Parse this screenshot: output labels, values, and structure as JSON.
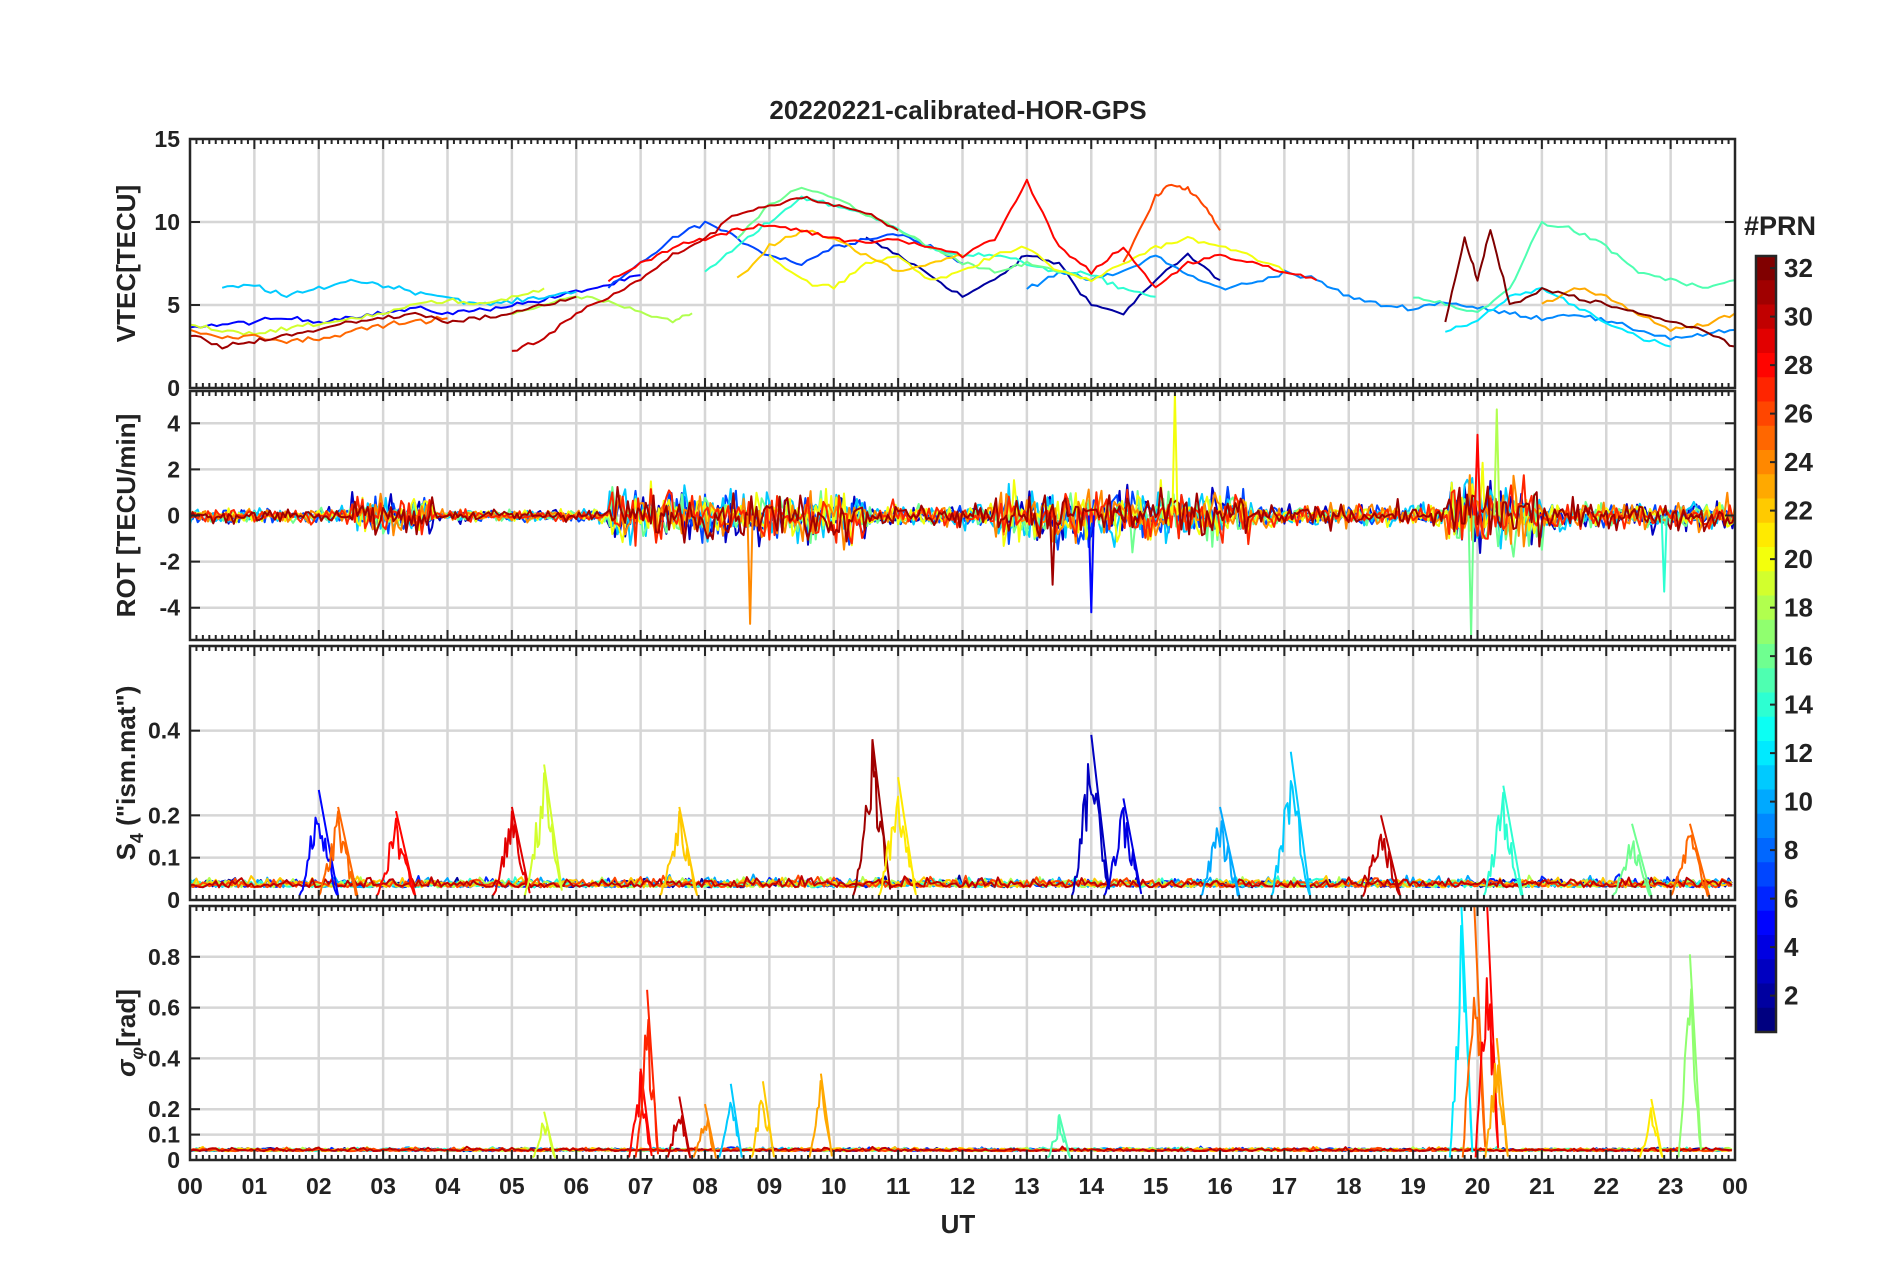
{
  "chart_data": [
    {
      "type": "line",
      "panel": "VTEC",
      "title": "20220221-calibrated-HOR-GPS",
      "ylabel": "VTEC[TECU]",
      "xlabel": "",
      "xlim": [
        0,
        24
      ],
      "ylim": [
        0,
        15
      ],
      "yticks": [
        0,
        5,
        10,
        15
      ],
      "xticks": [
        0,
        1,
        2,
        3,
        4,
        5,
        6,
        7,
        8,
        9,
        10,
        11,
        12,
        13,
        14,
        15,
        16,
        17,
        18,
        19,
        20,
        21,
        22,
        23,
        24
      ],
      "series": [
        {
          "prn": 2,
          "x": [
            10.5,
            11.0,
            11.5,
            12.0,
            12.5,
            13.0,
            13.5,
            14.0,
            14.5,
            15.0,
            15.5,
            16.0
          ],
          "y": [
            9.0,
            8.0,
            6.8,
            5.5,
            6.5,
            8.0,
            7.5,
            5.0,
            4.5,
            6.5,
            8.0,
            6.5
          ]
        },
        {
          "prn": 5,
          "x": [
            0.0,
            0.5,
            1.0,
            1.5,
            2.0,
            2.5,
            3.0,
            3.5,
            4.0,
            4.5,
            5.0,
            5.5,
            6.0,
            6.5,
            7.0
          ],
          "y": [
            3.7,
            3.8,
            4.0,
            4.2,
            4.0,
            4.3,
            4.5,
            4.8,
            4.5,
            4.7,
            5.0,
            5.3,
            5.8,
            6.2,
            6.8
          ]
        },
        {
          "prn": 7,
          "x": [
            6.5,
            7.0,
            7.5,
            8.0,
            8.5,
            9.0,
            9.5,
            10.0,
            10.5,
            11.0,
            11.5,
            12.0
          ],
          "y": [
            6.0,
            7.5,
            9.0,
            10.0,
            9.0,
            8.0,
            7.5,
            8.5,
            9.0,
            9.3,
            8.5,
            7.5
          ]
        },
        {
          "prn": 9,
          "x": [
            13.0,
            13.5,
            14.0,
            14.5,
            15.0,
            15.5,
            16.0,
            16.5,
            17.0,
            17.5,
            18.0,
            18.5,
            19.0,
            19.5,
            20.0,
            20.5,
            21.0,
            21.5,
            22.0,
            22.5,
            23.0,
            23.5,
            24.0
          ],
          "y": [
            6.0,
            7.0,
            6.5,
            7.0,
            8.0,
            6.8,
            6.0,
            6.3,
            7.0,
            6.5,
            5.5,
            5.0,
            4.8,
            5.2,
            4.8,
            4.5,
            4.2,
            4.5,
            4.0,
            3.5,
            3.0,
            3.2,
            3.5
          ]
        },
        {
          "prn": 11,
          "x": [
            0.5,
            1.0,
            1.5,
            2.0,
            2.5,
            3.0,
            3.5,
            4.0,
            4.5,
            5.0,
            5.5,
            6.0
          ],
          "y": [
            6.0,
            6.2,
            5.5,
            6.0,
            6.5,
            6.2,
            5.8,
            5.5,
            5.0,
            5.2,
            5.5,
            5.8
          ]
        },
        {
          "prn": 12,
          "x": [
            19.5,
            20.0,
            20.5,
            21.0,
            21.5,
            22.0,
            22.5,
            23.0
          ],
          "y": [
            3.5,
            4.0,
            5.5,
            6.0,
            5.0,
            4.0,
            3.0,
            2.5
          ]
        },
        {
          "prn": 14,
          "x": [
            8.0,
            8.5,
            9.0,
            9.5,
            10.0,
            10.5,
            11.0,
            11.5,
            12.0,
            12.5,
            13.0,
            13.5,
            14.0,
            14.5,
            15.0
          ],
          "y": [
            7.0,
            8.5,
            10.0,
            11.5,
            11.0,
            10.5,
            9.5,
            8.5,
            8.0,
            8.0,
            7.5,
            7.0,
            6.8,
            6.0,
            5.5
          ]
        },
        {
          "prn": 15,
          "x": [
            19.0,
            19.5,
            20.0,
            20.5,
            21.0,
            21.5,
            22.0,
            22.5,
            23.0,
            23.5,
            24.0
          ],
          "y": [
            5.5,
            5.0,
            4.5,
            6.0,
            10.0,
            9.5,
            8.5,
            7.0,
            6.5,
            6.0,
            6.5
          ]
        },
        {
          "prn": 16,
          "x": [
            8.5,
            9.0,
            9.5,
            10.0,
            10.5,
            11.0,
            11.5,
            12.0,
            12.5,
            13.0,
            13.5,
            14.0
          ],
          "y": [
            9.0,
            11.0,
            12.0,
            11.5,
            10.5,
            9.5,
            8.5,
            7.5,
            7.0,
            7.5,
            7.0,
            6.5
          ]
        },
        {
          "prn": 18,
          "x": [
            5.0,
            5.5,
            6.0,
            6.5,
            7.0,
            7.5,
            7.8
          ],
          "y": [
            4.5,
            5.0,
            5.5,
            5.2,
            4.5,
            4.0,
            4.5
          ]
        },
        {
          "prn": 19,
          "x": [
            0.0,
            0.5,
            1.0,
            1.5,
            2.0,
            2.5,
            3.0,
            3.5,
            4.0,
            4.5,
            5.0,
            5.5
          ],
          "y": [
            3.8,
            3.5,
            3.3,
            3.6,
            3.8,
            4.2,
            4.5,
            5.0,
            5.3,
            5.0,
            5.5,
            6.0
          ]
        },
        {
          "prn": 20,
          "x": [
            9.0,
            9.5,
            10.0,
            10.5,
            11.0,
            11.5,
            12.0,
            12.5,
            13.0,
            13.5,
            14.0,
            14.5,
            15.0,
            15.5,
            16.0,
            16.5,
            17.0
          ],
          "y": [
            8.0,
            6.5,
            6.0,
            7.5,
            8.0,
            6.5,
            7.0,
            8.0,
            8.5,
            7.0,
            6.5,
            7.5,
            8.5,
            9.0,
            8.5,
            8.0,
            7.0
          ]
        },
        {
          "prn": 22,
          "x": [
            8.5,
            9.0,
            9.5,
            10.0,
            10.5,
            11.0,
            11.5,
            12.0
          ],
          "y": [
            6.5,
            8.5,
            9.5,
            9.0,
            8.0,
            7.0,
            7.5,
            8.0
          ]
        },
        {
          "prn": 23,
          "x": [
            21.0,
            21.5,
            22.0,
            22.5,
            23.0,
            23.5,
            24.0
          ],
          "y": [
            5.0,
            6.0,
            5.5,
            4.5,
            3.5,
            3.8,
            4.5
          ]
        },
        {
          "prn": 25,
          "x": [
            0.0,
            0.5,
            1.0,
            1.5,
            2.0,
            2.5,
            3.0,
            3.5,
            4.0
          ],
          "y": [
            3.5,
            3.0,
            3.2,
            2.8,
            3.0,
            3.4,
            3.8,
            4.0,
            4.2
          ]
        },
        {
          "prn": 26,
          "x": [
            14.5,
            15.0,
            15.25,
            15.5,
            15.75,
            16.0
          ],
          "y": [
            7.5,
            11.5,
            12.3,
            12.0,
            11.0,
            9.5
          ]
        },
        {
          "prn": 28,
          "x": [
            6.5,
            7.0,
            7.5,
            8.0,
            8.5,
            9.0,
            9.5,
            10.0,
            10.5,
            11.0,
            11.5,
            12.0,
            12.5,
            13.0,
            13.5,
            14.0,
            14.5,
            15.0,
            15.5,
            16.0,
            16.5,
            17.0,
            17.5
          ],
          "y": [
            6.5,
            7.5,
            8.5,
            9.0,
            9.5,
            9.8,
            9.5,
            9.0,
            8.8,
            9.0,
            8.5,
            8.0,
            9.0,
            12.5,
            8.5,
            7.0,
            8.5,
            6.0,
            7.5,
            8.0,
            7.5,
            7.0,
            6.5
          ]
        },
        {
          "prn": 30,
          "x": [
            5.0,
            5.5,
            6.0,
            6.5,
            7.0,
            7.5,
            8.0,
            8.5,
            9.0,
            9.5,
            10.0,
            10.5,
            11.0
          ],
          "y": [
            2.2,
            3.0,
            4.5,
            5.5,
            6.5,
            8.0,
            9.0,
            10.5,
            11.0,
            11.5,
            11.0,
            10.5,
            9.5
          ]
        },
        {
          "prn": 31,
          "x": [
            0.0,
            0.5,
            1.0,
            1.5,
            2.0,
            2.5,
            3.0,
            3.5,
            4.0,
            4.5,
            5.0,
            5.5,
            6.0
          ],
          "y": [
            3.2,
            2.5,
            2.8,
            3.2,
            3.5,
            4.0,
            4.2,
            4.5,
            4.0,
            4.2,
            4.5,
            5.0,
            5.5
          ]
        },
        {
          "prn": 32,
          "x": [
            19.5,
            19.8,
            20.0,
            20.2,
            20.5,
            21.0,
            21.5,
            22.0,
            22.5,
            23.0,
            23.5,
            24.0
          ],
          "y": [
            4.0,
            9.0,
            6.5,
            9.5,
            5.0,
            6.0,
            5.5,
            5.0,
            4.5,
            4.0,
            3.5,
            2.5
          ]
        }
      ]
    },
    {
      "type": "line",
      "panel": "ROT",
      "ylabel": "ROT [TECU/min]",
      "xlim": [
        0,
        24
      ],
      "ylim": [
        -5.4,
        5.4
      ],
      "yticks": [
        -4,
        -2,
        0,
        2,
        4
      ],
      "activity": [
        {
          "from": 0.0,
          "to": 2.5,
          "amp": 0.6
        },
        {
          "from": 2.5,
          "to": 3.8,
          "amp": 1.6
        },
        {
          "from": 3.8,
          "to": 6.5,
          "amp": 0.5
        },
        {
          "from": 6.5,
          "to": 10.5,
          "amp": 1.9
        },
        {
          "from": 10.5,
          "to": 12.5,
          "amp": 0.9
        },
        {
          "from": 12.5,
          "to": 16.5,
          "amp": 2.1
        },
        {
          "from": 16.5,
          "to": 19.5,
          "amp": 0.8
        },
        {
          "from": 19.5,
          "to": 21.0,
          "amp": 2.8
        },
        {
          "from": 21.0,
          "to": 24.0,
          "amp": 1.1
        }
      ],
      "peaks": [
        {
          "x": 8.7,
          "y": -4.7,
          "prn": 24
        },
        {
          "x": 14.0,
          "y": -4.2,
          "prn": 5
        },
        {
          "x": 15.3,
          "y": 5.3,
          "prn": 20
        },
        {
          "x": 19.9,
          "y": -5.2,
          "prn": 16
        },
        {
          "x": 20.3,
          "y": 4.6,
          "prn": 18
        },
        {
          "x": 20.0,
          "y": 3.5,
          "prn": 28
        },
        {
          "x": 13.4,
          "y": -3.0,
          "prn": 31
        },
        {
          "x": 22.9,
          "y": -3.3,
          "prn": 14
        }
      ]
    },
    {
      "type": "line",
      "panel": "S4",
      "ylabel": "S4 (\"ism.mat\")",
      "ylabel_main": "S",
      "ylabel_sub": "4",
      "ylabel_rest": " (\"ism.mat\")",
      "xlim": [
        0,
        24
      ],
      "ylim": [
        0,
        0.6
      ],
      "yticks": [
        0,
        0.1,
        0.2,
        0.4
      ],
      "ytick_labels": [
        "0",
        "0.1",
        "0.2",
        "0.4"
      ],
      "peaks": [
        {
          "x": 2.0,
          "y": 0.26,
          "prn": 5
        },
        {
          "x": 2.3,
          "y": 0.22,
          "prn": 25
        },
        {
          "x": 3.2,
          "y": 0.21,
          "prn": 28
        },
        {
          "x": 5.0,
          "y": 0.22,
          "prn": 29
        },
        {
          "x": 5.5,
          "y": 0.32,
          "prn": 19
        },
        {
          "x": 7.6,
          "y": 0.22,
          "prn": 22
        },
        {
          "x": 10.6,
          "y": 0.38,
          "prn": 31
        },
        {
          "x": 11.0,
          "y": 0.29,
          "prn": 21
        },
        {
          "x": 14.0,
          "y": 0.39,
          "prn": 3
        },
        {
          "x": 14.5,
          "y": 0.24,
          "prn": 4
        },
        {
          "x": 16.0,
          "y": 0.22,
          "prn": 10
        },
        {
          "x": 17.1,
          "y": 0.35,
          "prn": 11
        },
        {
          "x": 18.5,
          "y": 0.2,
          "prn": 30
        },
        {
          "x": 20.4,
          "y": 0.27,
          "prn": 14
        },
        {
          "x": 22.4,
          "y": 0.18,
          "prn": 16
        },
        {
          "x": 23.3,
          "y": 0.18,
          "prn": 25
        }
      ]
    },
    {
      "type": "line",
      "panel": "sigma_phi",
      "ylabel": "σφ[rad]",
      "ylabel_main": "σ",
      "ylabel_sub": "φ",
      "ylabel_rest": "[rad]",
      "xlabel": "UT",
      "xlim": [
        0,
        24
      ],
      "ylim": [
        0,
        1.0
      ],
      "yticks": [
        0,
        0.1,
        0.2,
        0.4,
        0.6,
        0.8
      ],
      "ytick_labels": [
        "0",
        "0.1",
        "0.2",
        "0.4",
        "0.6",
        "0.8"
      ],
      "xtick_labels": [
        "00",
        "01",
        "02",
        "03",
        "04",
        "05",
        "06",
        "07",
        "08",
        "09",
        "10",
        "11",
        "12",
        "13",
        "14",
        "15",
        "16",
        "17",
        "18",
        "19",
        "20",
        "21",
        "22",
        "23",
        "00"
      ],
      "peaks": [
        {
          "x": 7.0,
          "y": 0.36,
          "prn": 28
        },
        {
          "x": 7.1,
          "y": 0.67,
          "prn": 27
        },
        {
          "x": 7.6,
          "y": 0.25,
          "prn": 30
        },
        {
          "x": 8.0,
          "y": 0.22,
          "prn": 24
        },
        {
          "x": 8.4,
          "y": 0.3,
          "prn": 11
        },
        {
          "x": 8.9,
          "y": 0.31,
          "prn": 22
        },
        {
          "x": 9.8,
          "y": 0.34,
          "prn": 23
        },
        {
          "x": 5.5,
          "y": 0.19,
          "prn": 19
        },
        {
          "x": 13.5,
          "y": 0.18,
          "prn": 15
        },
        {
          "x": 19.75,
          "y": 1.0,
          "prn": 12
        },
        {
          "x": 19.95,
          "y": 1.0,
          "prn": 25
        },
        {
          "x": 20.15,
          "y": 1.0,
          "prn": 28
        },
        {
          "x": 20.3,
          "y": 0.48,
          "prn": 23
        },
        {
          "x": 22.7,
          "y": 0.24,
          "prn": 21
        },
        {
          "x": 23.3,
          "y": 0.81,
          "prn": 17
        }
      ]
    }
  ],
  "figure": {
    "title": "20220221-calibrated-HOR-GPS",
    "xlabel": "UT"
  },
  "colorbar": {
    "title": "#PRN",
    "min": 1,
    "max": 32,
    "ticks": [
      2,
      4,
      6,
      8,
      10,
      12,
      14,
      16,
      18,
      20,
      22,
      24,
      26,
      28,
      30,
      32
    ],
    "colormap": "jet"
  }
}
